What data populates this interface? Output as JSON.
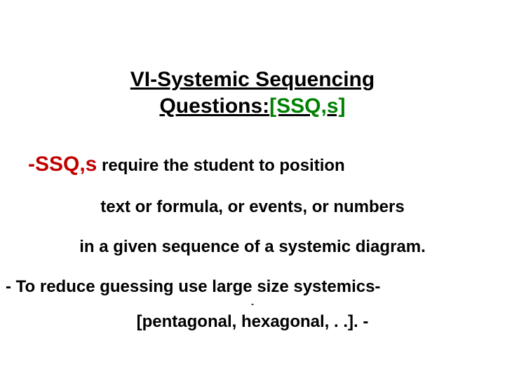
{
  "colors": {
    "text": "#000000",
    "accent_green": "#008000",
    "accent_red": "#c00000",
    "background": "#ffffff"
  },
  "typography": {
    "font_family": "Comic Sans MS",
    "title_fontsize_pt": 30,
    "body_fontsize_pt": 24,
    "lead_prefix_fontsize_pt": 30,
    "bold": true
  },
  "title": {
    "line1": "VI-Systemic Sequencing",
    "line2_prefix": "Questions:",
    "line2_suffix": "[SSQ,s]"
  },
  "body": {
    "lead_prefix": "-SSQ,s",
    "lead_rest": " require the student to position",
    "line2": "text  or formula, or events, or numbers",
    "line3": "in a given sequence of a systemic diagram.",
    "line4": "- To reduce guessing use large size  systemics-",
    "tiny_dash": "-",
    "line5": "[pentagonal, hexagonal, . .]. -"
  }
}
